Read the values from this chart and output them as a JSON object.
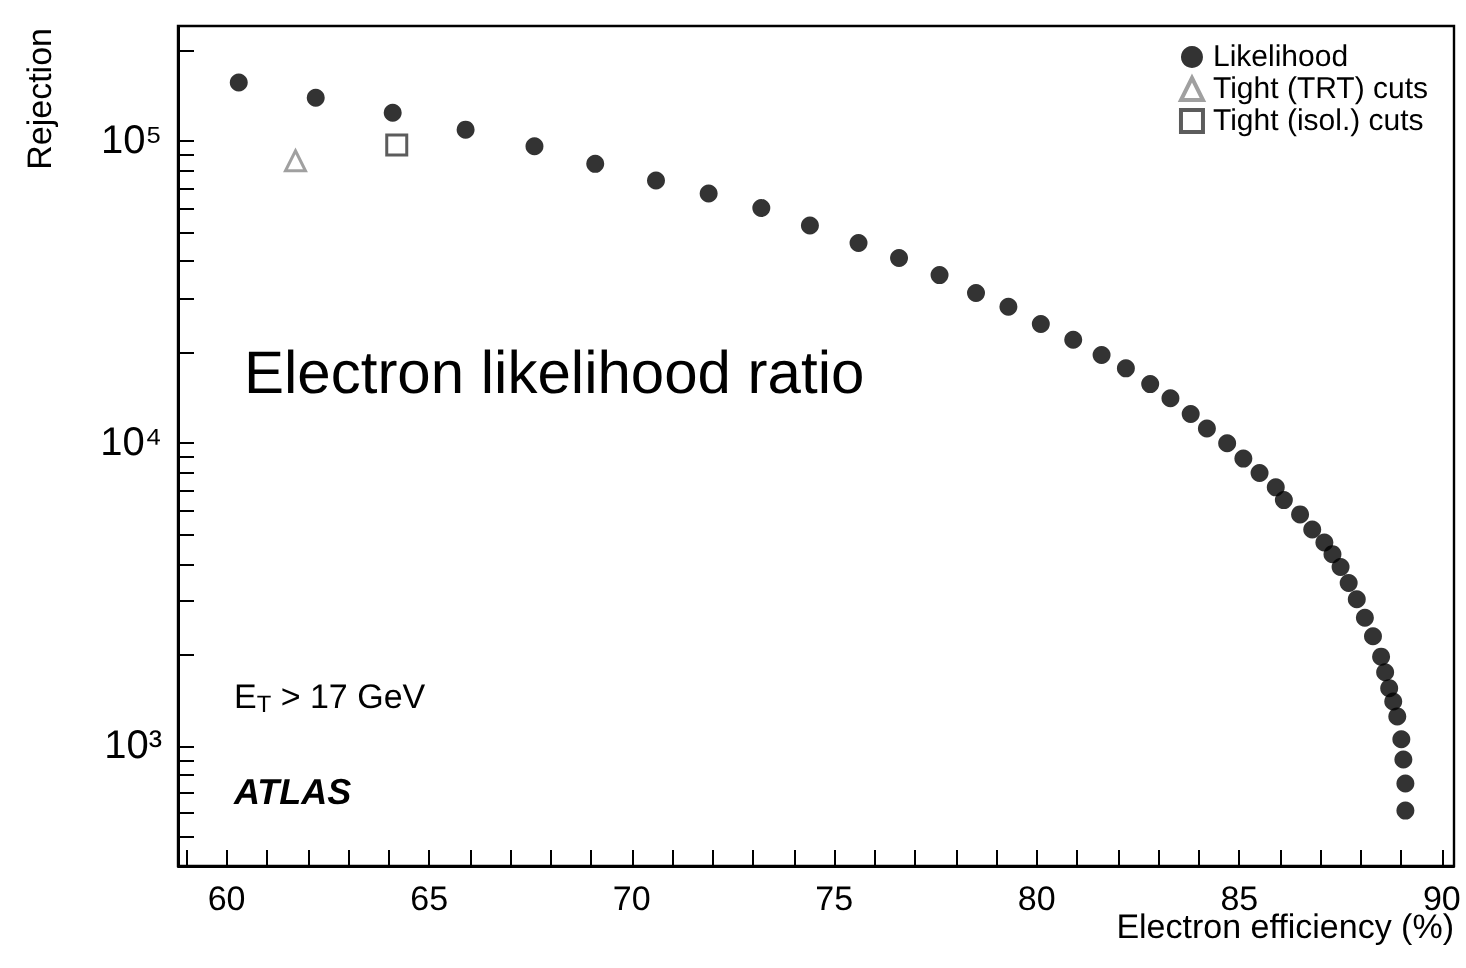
{
  "chart_data": {
    "type": "scatter",
    "xlabel": "Electron efficiency (%)",
    "ylabel": "Rejection",
    "log": "y",
    "grid": false,
    "legend": "top right",
    "xlim": [
      58.8,
      90.3
    ],
    "xticks": [
      {
        "value": 59,
        "label": null
      },
      60,
      {
        "value": 61,
        "label": null
      },
      {
        "value": 62,
        "label": null
      },
      {
        "value": 63,
        "label": null
      },
      {
        "value": 64,
        "label": null
      },
      65,
      {
        "value": 66,
        "label": null
      },
      {
        "value": 67,
        "label": null
      },
      {
        "value": 68,
        "label": null
      },
      {
        "value": 69,
        "label": null
      },
      70,
      {
        "value": 71,
        "label": null
      },
      {
        "value": 72,
        "label": null
      },
      {
        "value": 73,
        "label": null
      },
      {
        "value": 74,
        "label": null
      },
      75,
      {
        "value": 76,
        "label": null
      },
      {
        "value": 77,
        "label": null
      },
      {
        "value": 78,
        "label": null
      },
      {
        "value": 79,
        "label": null
      },
      80,
      {
        "value": 81,
        "label": null
      },
      {
        "value": 82,
        "label": null
      },
      {
        "value": 83,
        "label": null
      },
      {
        "value": 84,
        "label": null
      },
      85,
      {
        "value": 86,
        "label": null
      },
      {
        "value": 87,
        "label": null
      },
      {
        "value": 88,
        "label": null
      },
      {
        "value": 89,
        "label": null
      },
      90
    ],
    "ylim": [
      400,
      240000
    ],
    "yticks": [
      {
        "value": 500,
        "label": null
      },
      {
        "value": 600,
        "label": null
      },
      {
        "value": 700,
        "label": null
      },
      {
        "value": 800,
        "label": null
      },
      {
        "value": 900,
        "label": null
      },
      {
        "value": 1000,
        "label": "10³"
      },
      {
        "value": 2000,
        "label": null
      },
      {
        "value": 3000,
        "label": null
      },
      {
        "value": 4000,
        "label": null
      },
      {
        "value": 5000,
        "label": null
      },
      {
        "value": 6000,
        "label": null
      },
      {
        "value": 7000,
        "label": null
      },
      {
        "value": 8000,
        "label": null
      },
      {
        "value": 9000,
        "label": null
      },
      {
        "value": 10000,
        "label": "10⁴"
      },
      {
        "value": 20000,
        "label": null
      },
      {
        "value": 30000,
        "label": null
      },
      {
        "value": 40000,
        "label": null
      },
      {
        "value": 50000,
        "label": null
      },
      {
        "value": 60000,
        "label": null
      },
      {
        "value": 70000,
        "label": null
      },
      {
        "value": 80000,
        "label": null
      },
      {
        "value": 90000,
        "label": null
      },
      {
        "value": 100000,
        "label": "10⁵"
      },
      {
        "value": 200000,
        "label": null
      }
    ],
    "annotations": [
      "Electron likelihood ratio",
      "E$_{T}$ > 17 GeV",
      "ATLAS"
    ],
    "series": [
      {
        "name": "Likelihood",
        "color": "#000000",
        "marker": "circle",
        "x": [
          60.3,
          62.2,
          64.1,
          65.9,
          67.6,
          69.1,
          70.6,
          71.9,
          73.2,
          74.4,
          75.6,
          76.6,
          77.6,
          78.5,
          79.3,
          80.1,
          80.9,
          81.6,
          82.2,
          82.8,
          83.3,
          83.8,
          84.2,
          84.7,
          85.1,
          85.5,
          85.9,
          86.1,
          86.5,
          86.8,
          87.1,
          87.3,
          87.5,
          87.7,
          87.9,
          88.1,
          88.3,
          88.5,
          88.6,
          88.7,
          88.8,
          88.9,
          89.0,
          89.05,
          89.1,
          89.1
        ],
        "values": [
          156000,
          139000,
          124000,
          109000,
          96000,
          84000,
          74000,
          67000,
          60000,
          52500,
          46000,
          41000,
          36000,
          31400,
          28300,
          24800,
          22000,
          19600,
          17700,
          15700,
          14100,
          12500,
          11200,
          10000,
          8900,
          7980,
          7150,
          6490,
          5820,
          5190,
          4700,
          4300,
          3900,
          3450,
          3050,
          2650,
          2300,
          1970,
          1750,
          1550,
          1400,
          1250,
          1050,
          900,
          750,
          610
        ]
      },
      {
        "name": "Tight (TRT) cuts",
        "color": "#888888",
        "marker": "triangle",
        "x": [
          61.7
        ],
        "values": [
          86000
        ]
      },
      {
        "name": "Tight (isol.) cuts",
        "color": "#333333",
        "marker": "square",
        "x": [
          64.2
        ],
        "values": [
          97000
        ]
      }
    ]
  }
}
